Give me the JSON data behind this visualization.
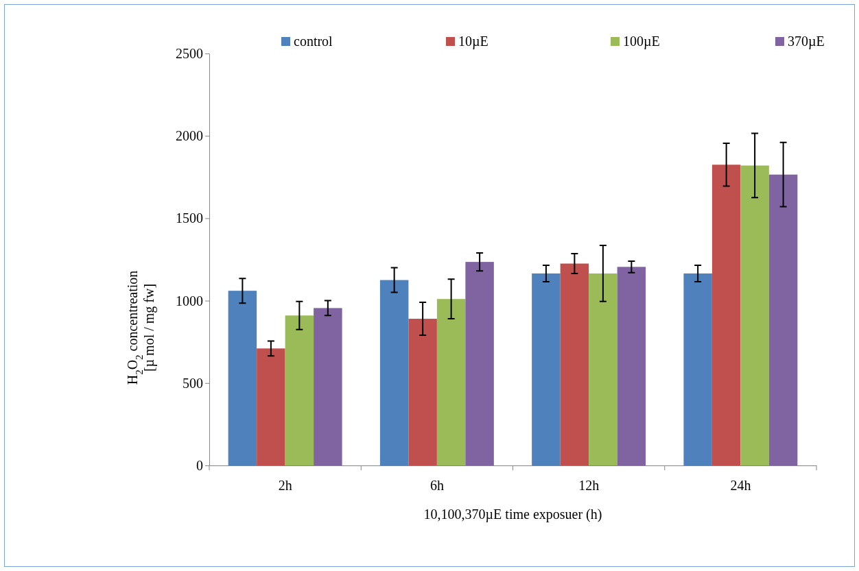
{
  "chart_data": {
    "type": "bar",
    "categories": [
      "2h",
      "6h",
      "12h",
      "24h"
    ],
    "xlabel": "10,100,370µE time exposuer (h)",
    "ylabel": "H$_{2}$O$_{2}$ concentreation\n[µ mol / mg fw]",
    "ylim": [
      0,
      2500
    ],
    "yticks": [
      0,
      500,
      1000,
      1500,
      2000,
      2500
    ],
    "grid": false,
    "legend": "top",
    "series": [
      {
        "name": "control",
        "color": "#4f81bd",
        "values": [
          1060,
          1125,
          1165,
          1165
        ],
        "errors": [
          75,
          75,
          50,
          50
        ]
      },
      {
        "name": "10µE",
        "color": "#c0504d",
        "values": [
          710,
          890,
          1225,
          1825
        ],
        "errors": [
          45,
          100,
          60,
          130
        ]
      },
      {
        "name": "100µE",
        "color": "#9bbb59",
        "values": [
          910,
          1010,
          1165,
          1820
        ],
        "errors": [
          85,
          120,
          170,
          195
        ]
      },
      {
        "name": "370µE",
        "color": "#8064a2",
        "values": [
          955,
          1235,
          1205,
          1765
        ],
        "errors": [
          45,
          55,
          35,
          195
        ]
      }
    ]
  }
}
